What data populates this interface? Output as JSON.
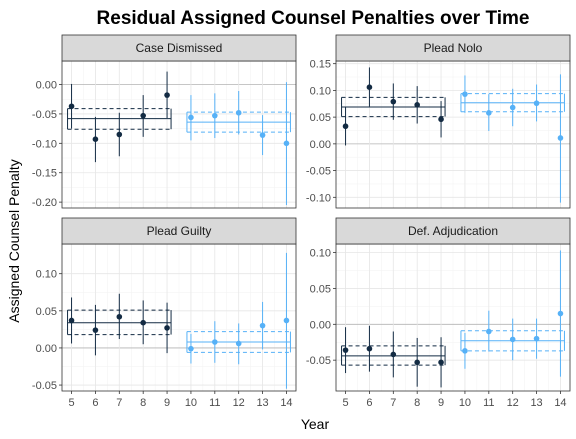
{
  "chart_data": {
    "type": "scatter",
    "title": "Residual Assigned Counsel Penalties over Time",
    "xlabel": "Year",
    "ylabel": "Assigned Counsel Penalty",
    "x_ticks": [
      5,
      6,
      7,
      8,
      9,
      10,
      11,
      12,
      13,
      14
    ],
    "xlim": [
      4.6,
      14.4
    ],
    "colors": {
      "early": "#132b43",
      "late": "#56b1f7"
    },
    "panels": [
      {
        "name": "Case Dismissed",
        "ylim": [
          -0.21,
          0.04
        ],
        "y_ticks": [
          0.0,
          -0.05,
          -0.1,
          -0.15,
          -0.2
        ],
        "y_tick_labels": [
          "0.00",
          "-0.05",
          "-0.10",
          "-0.15",
          "-0.20"
        ],
        "points": [
          {
            "x": 5,
            "y": -0.037,
            "lo": -0.075,
            "hi": 0.001
          },
          {
            "x": 6,
            "y": -0.093,
            "lo": -0.132,
            "hi": -0.055
          },
          {
            "x": 7,
            "y": -0.085,
            "lo": -0.122,
            "hi": -0.048
          },
          {
            "x": 8,
            "y": -0.053,
            "lo": -0.089,
            "hi": -0.018
          },
          {
            "x": 9,
            "y": -0.018,
            "lo": -0.057,
            "hi": 0.022
          },
          {
            "x": 10,
            "y": -0.056,
            "lo": -0.095,
            "hi": -0.018
          },
          {
            "x": 11,
            "y": -0.053,
            "lo": -0.091,
            "hi": -0.015
          },
          {
            "x": 12,
            "y": -0.048,
            "lo": -0.085,
            "hi": -0.011
          },
          {
            "x": 13,
            "y": -0.086,
            "lo": -0.12,
            "hi": -0.052
          },
          {
            "x": 14,
            "y": -0.1,
            "lo": -0.205,
            "hi": 0.004
          }
        ],
        "fit_early": {
          "x0": 5,
          "x1": 9,
          "y": -0.058,
          "lo": -0.076,
          "hi": -0.041
        },
        "fit_late": {
          "x0": 10,
          "x1": 14,
          "y": -0.064,
          "lo": -0.081,
          "hi": -0.047
        }
      },
      {
        "name": "Plead Nolo",
        "ylim": [
          -0.12,
          0.155
        ],
        "y_ticks": [
          0.15,
          0.1,
          0.05,
          0.0,
          -0.05,
          -0.1
        ],
        "y_tick_labels": [
          "0.15",
          "0.10",
          "0.05",
          "0.00",
          "-0.05",
          "-0.10"
        ],
        "points": [
          {
            "x": 5,
            "y": 0.033,
            "lo": -0.003,
            "hi": 0.068
          },
          {
            "x": 6,
            "y": 0.106,
            "lo": 0.07,
            "hi": 0.143
          },
          {
            "x": 7,
            "y": 0.079,
            "lo": 0.045,
            "hi": 0.113
          },
          {
            "x": 8,
            "y": 0.073,
            "lo": 0.038,
            "hi": 0.108
          },
          {
            "x": 9,
            "y": 0.046,
            "lo": 0.012,
            "hi": 0.08
          },
          {
            "x": 10,
            "y": 0.093,
            "lo": 0.058,
            "hi": 0.128
          },
          {
            "x": 11,
            "y": 0.058,
            "lo": 0.024,
            "hi": 0.093
          },
          {
            "x": 12,
            "y": 0.068,
            "lo": 0.033,
            "hi": 0.103
          },
          {
            "x": 13,
            "y": 0.076,
            "lo": 0.042,
            "hi": 0.111
          },
          {
            "x": 14,
            "y": 0.011,
            "lo": -0.11,
            "hi": 0.13
          }
        ],
        "fit_early": {
          "x0": 5,
          "x1": 9,
          "y": 0.069,
          "lo": 0.051,
          "hi": 0.087
        },
        "fit_late": {
          "x0": 10,
          "x1": 14,
          "y": 0.077,
          "lo": 0.06,
          "hi": 0.094
        }
      },
      {
        "name": "Plead Guilty",
        "ylim": [
          -0.058,
          0.14
        ],
        "y_ticks": [
          0.1,
          0.05,
          0.0,
          -0.05
        ],
        "y_tick_labels": [
          "0.10",
          "0.05",
          "0.00",
          "-0.05"
        ],
        "points": [
          {
            "x": 5,
            "y": 0.037,
            "lo": 0.006,
            "hi": 0.068
          },
          {
            "x": 6,
            "y": 0.024,
            "lo": -0.01,
            "hi": 0.058
          },
          {
            "x": 7,
            "y": 0.042,
            "lo": 0.012,
            "hi": 0.073
          },
          {
            "x": 8,
            "y": 0.034,
            "lo": 0.005,
            "hi": 0.064
          },
          {
            "x": 9,
            "y": 0.027,
            "lo": -0.007,
            "hi": 0.061
          },
          {
            "x": 10,
            "y": -0.001,
            "lo": -0.021,
            "hi": 0.019
          },
          {
            "x": 11,
            "y": 0.008,
            "lo": -0.02,
            "hi": 0.036
          },
          {
            "x": 12,
            "y": 0.006,
            "lo": -0.022,
            "hi": 0.033
          },
          {
            "x": 13,
            "y": 0.03,
            "lo": -0.002,
            "hi": 0.062
          },
          {
            "x": 14,
            "y": 0.037,
            "lo": -0.055,
            "hi": 0.128
          }
        ],
        "fit_early": {
          "x0": 5,
          "x1": 9,
          "y": 0.034,
          "lo": 0.018,
          "hi": 0.051
        },
        "fit_late": {
          "x0": 10,
          "x1": 14,
          "y": 0.008,
          "lo": -0.006,
          "hi": 0.022
        }
      },
      {
        "name": "Def. Adjudication",
        "ylim": [
          -0.093,
          0.112
        ],
        "y_ticks": [
          0.1,
          0.05,
          0.0,
          -0.05
        ],
        "y_tick_labels": [
          "0.10",
          "0.05",
          "0.00",
          "-0.05"
        ],
        "points": [
          {
            "x": 5,
            "y": -0.036,
            "lo": -0.068,
            "hi": -0.004
          },
          {
            "x": 6,
            "y": -0.034,
            "lo": -0.066,
            "hi": -0.002
          },
          {
            "x": 7,
            "y": -0.042,
            "lo": -0.074,
            "hi": -0.01
          },
          {
            "x": 8,
            "y": -0.053,
            "lo": -0.087,
            "hi": -0.019
          },
          {
            "x": 9,
            "y": -0.053,
            "lo": -0.088,
            "hi": -0.018
          },
          {
            "x": 10,
            "y": -0.037,
            "lo": -0.062,
            "hi": -0.012
          },
          {
            "x": 11,
            "y": -0.01,
            "lo": -0.038,
            "hi": 0.019
          },
          {
            "x": 12,
            "y": -0.021,
            "lo": -0.05,
            "hi": 0.008
          },
          {
            "x": 13,
            "y": -0.02,
            "lo": -0.048,
            "hi": 0.008
          },
          {
            "x": 14,
            "y": 0.015,
            "lo": -0.073,
            "hi": 0.103
          }
        ],
        "fit_early": {
          "x0": 5,
          "x1": 9,
          "y": -0.044,
          "lo": -0.057,
          "hi": -0.03
        },
        "fit_late": {
          "x0": 10,
          "x1": 14,
          "y": -0.023,
          "lo": -0.037,
          "hi": -0.009
        }
      }
    ]
  }
}
